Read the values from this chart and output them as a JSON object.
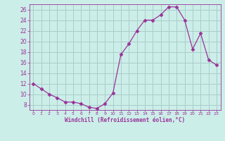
{
  "x": [
    0,
    1,
    2,
    3,
    4,
    5,
    6,
    7,
    8,
    9,
    10,
    11,
    12,
    13,
    14,
    15,
    16,
    17,
    18,
    19,
    20,
    21,
    22,
    23
  ],
  "y": [
    12,
    11,
    10,
    9.3,
    8.5,
    8.5,
    8.2,
    7.5,
    7.3,
    8.2,
    10.2,
    17.5,
    19.5,
    22,
    24,
    24,
    25,
    26.5,
    26.5,
    24,
    18.5,
    21.5,
    16.5,
    15.5
  ],
  "line_color": "#993399",
  "marker_color": "#993399",
  "bg_color": "#cceee8",
  "grid_color": "#aacccc",
  "xlabel": "Windchill (Refroidissement éolien,°C)",
  "xlabel_color": "#993399",
  "tick_color": "#993399",
  "ylim": [
    7,
    27
  ],
  "yticks": [
    8,
    10,
    12,
    14,
    16,
    18,
    20,
    22,
    24,
    26
  ],
  "xlim": [
    -0.5,
    23.5
  ],
  "xticks": [
    0,
    1,
    2,
    3,
    4,
    5,
    6,
    7,
    8,
    9,
    10,
    11,
    12,
    13,
    14,
    15,
    16,
    17,
    18,
    19,
    20,
    21,
    22,
    23
  ]
}
